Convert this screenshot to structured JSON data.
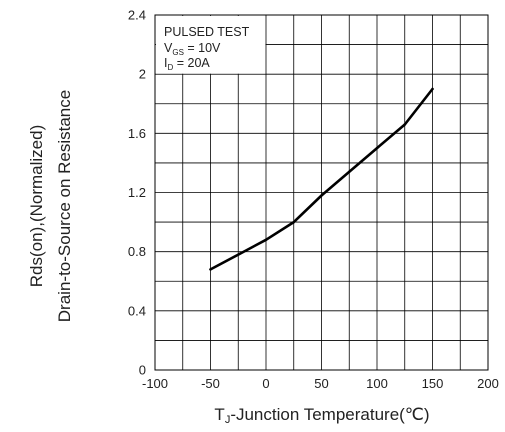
{
  "chart_data": {
    "type": "line",
    "x": [
      -50,
      -25,
      0,
      25,
      50,
      75,
      100,
      125,
      150
    ],
    "series": [
      {
        "values": [
          0.68,
          0.78,
          0.88,
          1.0,
          1.18,
          1.34,
          1.5,
          1.66,
          1.9
        ]
      }
    ],
    "xlim": [
      -100,
      200
    ],
    "ylim": [
      0,
      2.4
    ],
    "x_ticks": [
      -100,
      -50,
      0,
      50,
      100,
      150,
      200
    ],
    "y_ticks": [
      0,
      0.4,
      0.8,
      1.2,
      1.6,
      2,
      2.4
    ],
    "x_tick_labels": [
      "-100",
      "-50",
      "0",
      "50",
      "100",
      "150",
      "200"
    ],
    "y_tick_labels": [
      "0",
      "0.4",
      "0.8",
      "1.2",
      "1.6",
      "2",
      "2.4"
    ],
    "grid": true,
    "xlabel": {
      "main": "T",
      "sub": "J",
      "rest": "-Junction Temperature(℃)"
    },
    "ylabel": [
      "Rds(on),(Normalized)",
      "Drain-to-Source on Resistance"
    ],
    "annotation": {
      "line1": "PULSED TEST",
      "line2": {
        "main": "V",
        "sub": "GS",
        "rest": " = 10V"
      },
      "line3": {
        "main": "I",
        "sub": "D",
        "rest": " = 20A"
      }
    }
  },
  "colors": {
    "line": "#000000",
    "grid": "#000000",
    "text": "#222222"
  }
}
